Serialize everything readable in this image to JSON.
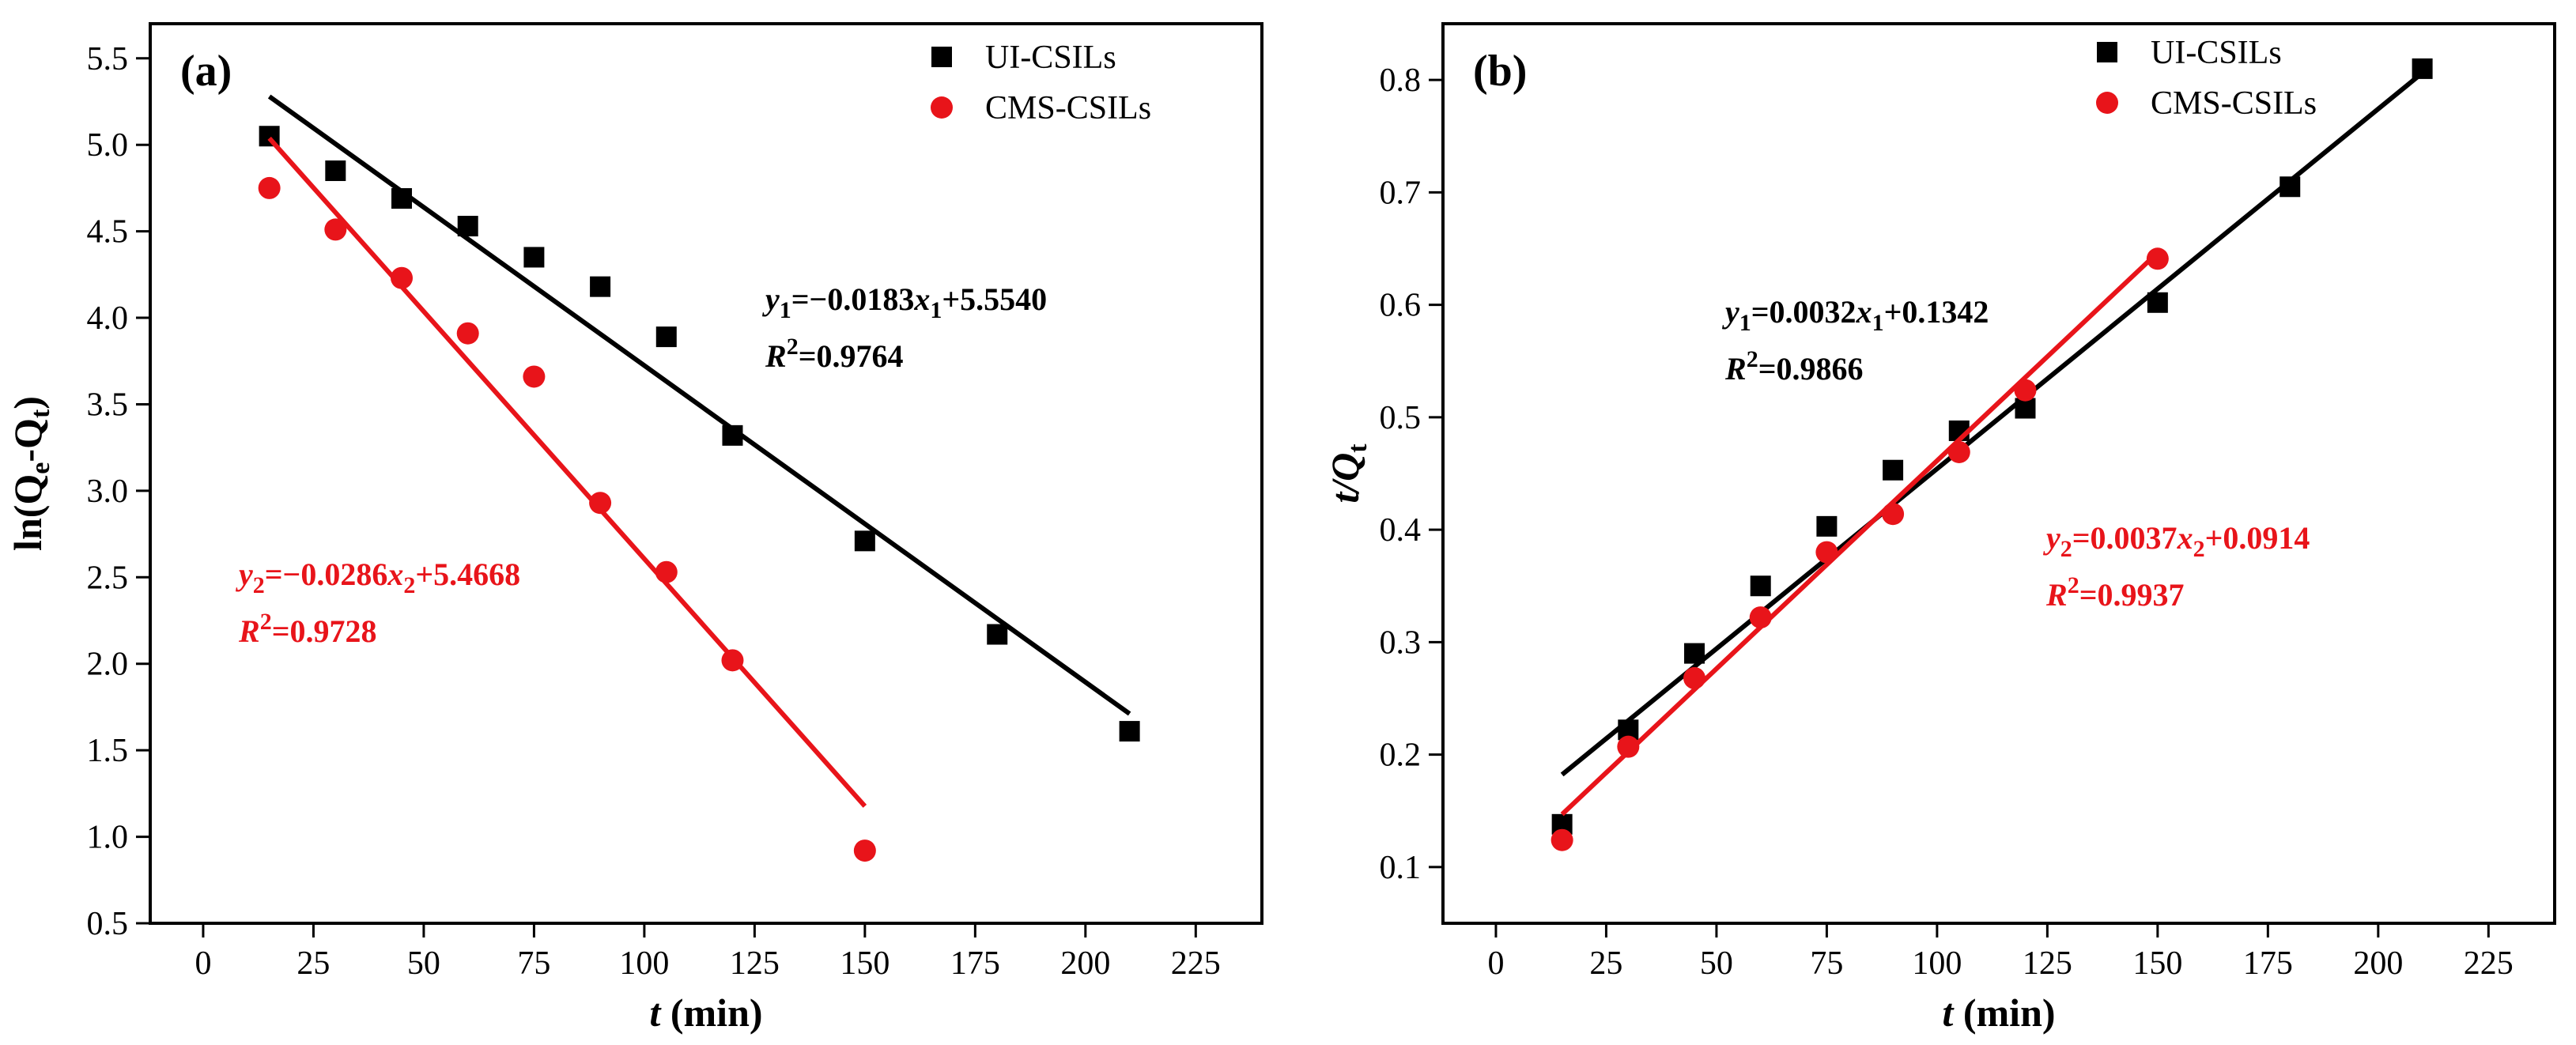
{
  "chart_data": [
    {
      "type": "scatter",
      "panel_label": "(a)",
      "xlabel_var": "t",
      "xlabel_unit": " (min)",
      "ylabel_main": "ln(Q",
      "ylabel_sub1": "e",
      "ylabel_mid": "-Q",
      "ylabel_sub2": "t",
      "ylabel_end": ")",
      "xlim": [
        -12,
        240
      ],
      "ylim": [
        0.5,
        5.7
      ],
      "xticks": [
        0,
        25,
        50,
        75,
        100,
        125,
        150,
        175,
        200,
        225
      ],
      "yticks": [
        0.5,
        1.0,
        1.5,
        2.0,
        2.5,
        3.0,
        3.5,
        4.0,
        4.5,
        5.0,
        5.5
      ],
      "ytick_decimals": 1,
      "legend_position": "top-right",
      "series": [
        {
          "name": "UI-CSILs",
          "marker": "square",
          "color": "#000000",
          "x": [
            15,
            30,
            45,
            60,
            75,
            90,
            105,
            120,
            150,
            180,
            210
          ],
          "y": [
            5.05,
            4.85,
            4.69,
            4.53,
            4.35,
            4.18,
            3.89,
            3.32,
            2.71,
            2.17,
            1.61
          ],
          "fit": {
            "slope": -0.0183,
            "intercept": 5.554,
            "x_start": 15,
            "x_end": 210
          },
          "equation": {
            "var": "y",
            "sub": "1",
            "rhs": "=−0.0183",
            "xvar": "x",
            "xsub": "1",
            "tail": "+5.5540",
            "r2_label": "R",
            "r2_sup": "2",
            "r2_value": "=0.9764"
          }
        },
        {
          "name": "CMS-CSILs",
          "marker": "circle",
          "color": "#e8141a",
          "x": [
            15,
            30,
            45,
            60,
            75,
            90,
            105,
            120,
            150
          ],
          "y": [
            4.75,
            4.51,
            4.23,
            3.91,
            3.66,
            2.93,
            2.53,
            2.02,
            0.92
          ],
          "fit": {
            "slope": -0.0286,
            "intercept": 5.4668,
            "x_start": 15,
            "x_end": 150
          },
          "equation": {
            "var": "y",
            "sub": "2",
            "rhs": "=−0.0286",
            "xvar": "x",
            "xsub": "2",
            "tail": "+5.4668",
            "r2_label": "R",
            "r2_sup": "2",
            "r2_value": "=0.9728"
          }
        }
      ]
    },
    {
      "type": "scatter",
      "panel_label": "(b)",
      "xlabel_var": "t",
      "xlabel_unit": " (min)",
      "ylabel_main": "t/Q",
      "ylabel_sub1": "t",
      "xlim": [
        -12,
        240
      ],
      "ylim": [
        0.05,
        0.85
      ],
      "xticks": [
        0,
        25,
        50,
        75,
        100,
        125,
        150,
        175,
        200,
        225
      ],
      "yticks": [
        0.1,
        0.2,
        0.3,
        0.4,
        0.5,
        0.6,
        0.7,
        0.8
      ],
      "ytick_decimals": 1,
      "legend_position": "top-right",
      "series": [
        {
          "name": "UI-CSILs",
          "marker": "square",
          "color": "#000000",
          "x": [
            15,
            30,
            45,
            60,
            75,
            90,
            105,
            120,
            150,
            180,
            210
          ],
          "y": [
            0.138,
            0.222,
            0.29,
            0.35,
            0.403,
            0.453,
            0.488,
            0.508,
            0.602,
            0.705,
            0.81
          ],
          "fit": {
            "slope": 0.0032,
            "intercept": 0.1342,
            "x_start": 15,
            "x_end": 210
          },
          "equation": {
            "var": "y",
            "sub": "1",
            "rhs": "=0.0032",
            "xvar": "x",
            "xsub": "1",
            "tail": "+0.1342",
            "r2_label": "R",
            "r2_sup": "2",
            "r2_value": "=0.9866"
          }
        },
        {
          "name": "CMS-CSILs",
          "marker": "circle",
          "color": "#e8141a",
          "x": [
            15,
            30,
            45,
            60,
            75,
            90,
            105,
            120,
            150
          ],
          "y": [
            0.124,
            0.207,
            0.268,
            0.322,
            0.38,
            0.414,
            0.469,
            0.524,
            0.641
          ],
          "fit": {
            "slope": 0.0037,
            "intercept": 0.0914,
            "x_start": 15,
            "x_end": 150
          },
          "equation": {
            "var": "y",
            "sub": "2",
            "rhs": "=0.0037",
            "xvar": "x",
            "xsub": "2",
            "tail": "+0.0914",
            "r2_label": "R",
            "r2_sup": "2",
            "r2_value": "=0.9937"
          }
        }
      ]
    }
  ]
}
